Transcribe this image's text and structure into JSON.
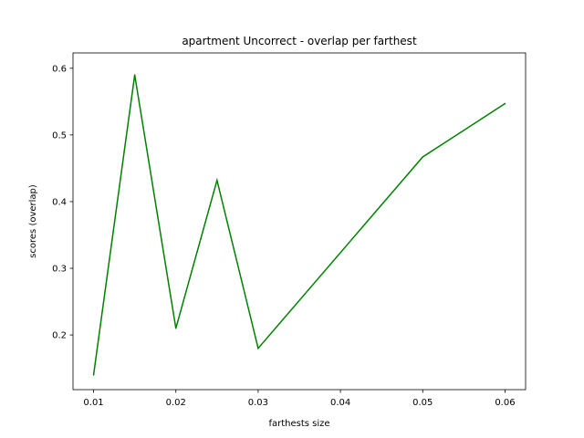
{
  "chart_data": {
    "type": "line",
    "title": "apartment Uncorrect - overlap per farthest",
    "xlabel": "farthests size",
    "ylabel": "scores (overlap)",
    "xlim": [
      0.0075,
      0.0625
    ],
    "ylim": [
      0.118,
      0.623
    ],
    "xticks": [
      0.01,
      0.02,
      0.03,
      0.04,
      0.05,
      0.06
    ],
    "xtick_labels": [
      "0.01",
      "0.02",
      "0.03",
      "0.04",
      "0.05",
      "0.06"
    ],
    "yticks": [
      0.2,
      0.3,
      0.4,
      0.5,
      0.6
    ],
    "ytick_labels": [
      "0.2",
      "0.3",
      "0.4",
      "0.5",
      "0.6"
    ],
    "grid": false,
    "series": [
      {
        "color": "#008000",
        "x": [
          0.01,
          0.015,
          0.02,
          0.025,
          0.03,
          0.05,
          0.06
        ],
        "y": [
          0.14,
          0.59,
          0.21,
          0.432,
          0.18,
          0.467,
          0.547
        ]
      }
    ]
  }
}
